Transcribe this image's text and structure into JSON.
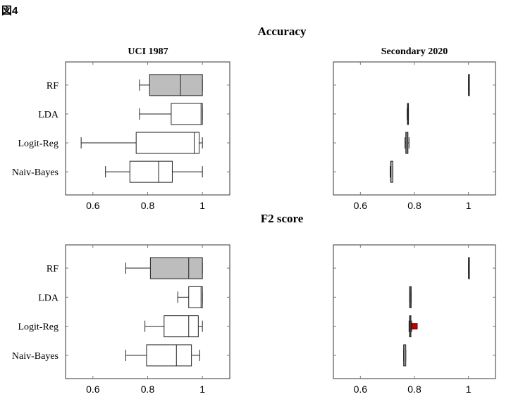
{
  "figure_label": "図4",
  "chart_data": [
    {
      "type": "boxplot",
      "section": "Accuracy",
      "title": "UCI 1987",
      "xlim": [
        0.5,
        1.1
      ],
      "xticks": [
        "0.6",
        "0.8",
        "1"
      ],
      "xtick_values": [
        0.6,
        0.8,
        1
      ],
      "categories": [
        "RF",
        "LDA",
        "Logit-Reg",
        "Naiv-Bayes"
      ],
      "boxes": [
        {
          "min": 0.77,
          "q1": 0.807,
          "median": 0.92,
          "q3": 1.0,
          "max": 1.0,
          "fill": "#bdbdbd"
        },
        {
          "min": 0.77,
          "q1": 0.886,
          "median": 0.995,
          "q3": 1.0,
          "max": 1.0,
          "fill": "#ffffff"
        },
        {
          "min": 0.557,
          "q1": 0.758,
          "median": 0.97,
          "q3": 0.988,
          "max": 1.0,
          "fill": "#ffffff"
        },
        {
          "min": 0.646,
          "q1": 0.735,
          "median": 0.84,
          "q3": 0.89,
          "max": 1.0,
          "fill": "#ffffff"
        }
      ]
    },
    {
      "type": "boxplot",
      "section": "Accuracy",
      "title": "Secondary 2020",
      "xlim": [
        0.5,
        1.1
      ],
      "xticks": [
        "0.6",
        "0.8",
        "1"
      ],
      "xtick_values": [
        0.6,
        0.8,
        1
      ],
      "categories": [
        "RF",
        "LDA",
        "Logit-Reg",
        "Naiv-Bayes"
      ],
      "boxes": [
        {
          "min": 1.0,
          "q1": 1.0,
          "median": 1.0,
          "q3": 1.0,
          "max": 1.0,
          "fill": "#bdbdbd"
        },
        {
          "min": 0.773,
          "q1": 0.774,
          "median": 0.776,
          "q3": 0.778,
          "max": 0.778,
          "fill": "#bdbdbd"
        },
        {
          "min": 0.765,
          "q1": 0.768,
          "median": 0.772,
          "q3": 0.776,
          "max": 0.78,
          "fill": "#bdbdbd"
        },
        {
          "min": 0.71,
          "q1": 0.712,
          "median": 0.713,
          "q3": 0.72,
          "max": 0.72,
          "fill": "#bdbdbd"
        }
      ]
    },
    {
      "type": "boxplot",
      "section": "F2 score",
      "title": "",
      "xlim": [
        0.5,
        1.1
      ],
      "xticks": [
        "0.6",
        "0.8",
        "1"
      ],
      "xtick_values": [
        0.6,
        0.8,
        1
      ],
      "categories": [
        "RF",
        "LDA",
        "Logit-Reg",
        "Naiv-Bayes"
      ],
      "boxes": [
        {
          "min": 0.72,
          "q1": 0.81,
          "median": 0.95,
          "q3": 1.0,
          "max": 1.0,
          "fill": "#bdbdbd"
        },
        {
          "min": 0.91,
          "q1": 0.95,
          "median": 0.995,
          "q3": 1.0,
          "max": 1.0,
          "fill": "#ffffff"
        },
        {
          "min": 0.79,
          "q1": 0.86,
          "median": 0.95,
          "q3": 0.985,
          "max": 1.0,
          "fill": "#ffffff"
        },
        {
          "min": 0.72,
          "q1": 0.796,
          "median": 0.905,
          "q3": 0.96,
          "max": 0.99,
          "fill": "#ffffff"
        }
      ]
    },
    {
      "type": "boxplot",
      "section": "F2 score",
      "title": "",
      "xlim": [
        0.5,
        1.1
      ],
      "xticks": [
        "0.6",
        "0.8",
        "1"
      ],
      "xtick_values": [
        0.6,
        0.8,
        1
      ],
      "categories": [
        "RF",
        "LDA",
        "Logit-Reg",
        "Naiv-Bayes"
      ],
      "boxes": [
        {
          "min": 1.0,
          "q1": 1.0,
          "median": 1.0,
          "q3": 1.0,
          "max": 1.0,
          "fill": "#bdbdbd"
        },
        {
          "min": 0.782,
          "q1": 0.782,
          "median": 0.785,
          "q3": 0.788,
          "max": 0.788,
          "fill": "#bdbdbd"
        },
        {
          "min": 0.78,
          "q1": 0.782,
          "median": 0.784,
          "q3": 0.787,
          "max": 0.79,
          "fill": "#bdbdbd",
          "outliers": [
            0.8
          ],
          "outlier_color": "#c00000"
        },
        {
          "min": 0.76,
          "q1": 0.76,
          "median": 0.764,
          "q3": 0.768,
          "max": 0.768,
          "fill": "#ffffff"
        }
      ]
    }
  ],
  "sections": {
    "accuracy": "Accuracy",
    "f2": "F2 score"
  },
  "panel_titles": {
    "left": "UCI 1987",
    "right": "Secondary 2020"
  }
}
